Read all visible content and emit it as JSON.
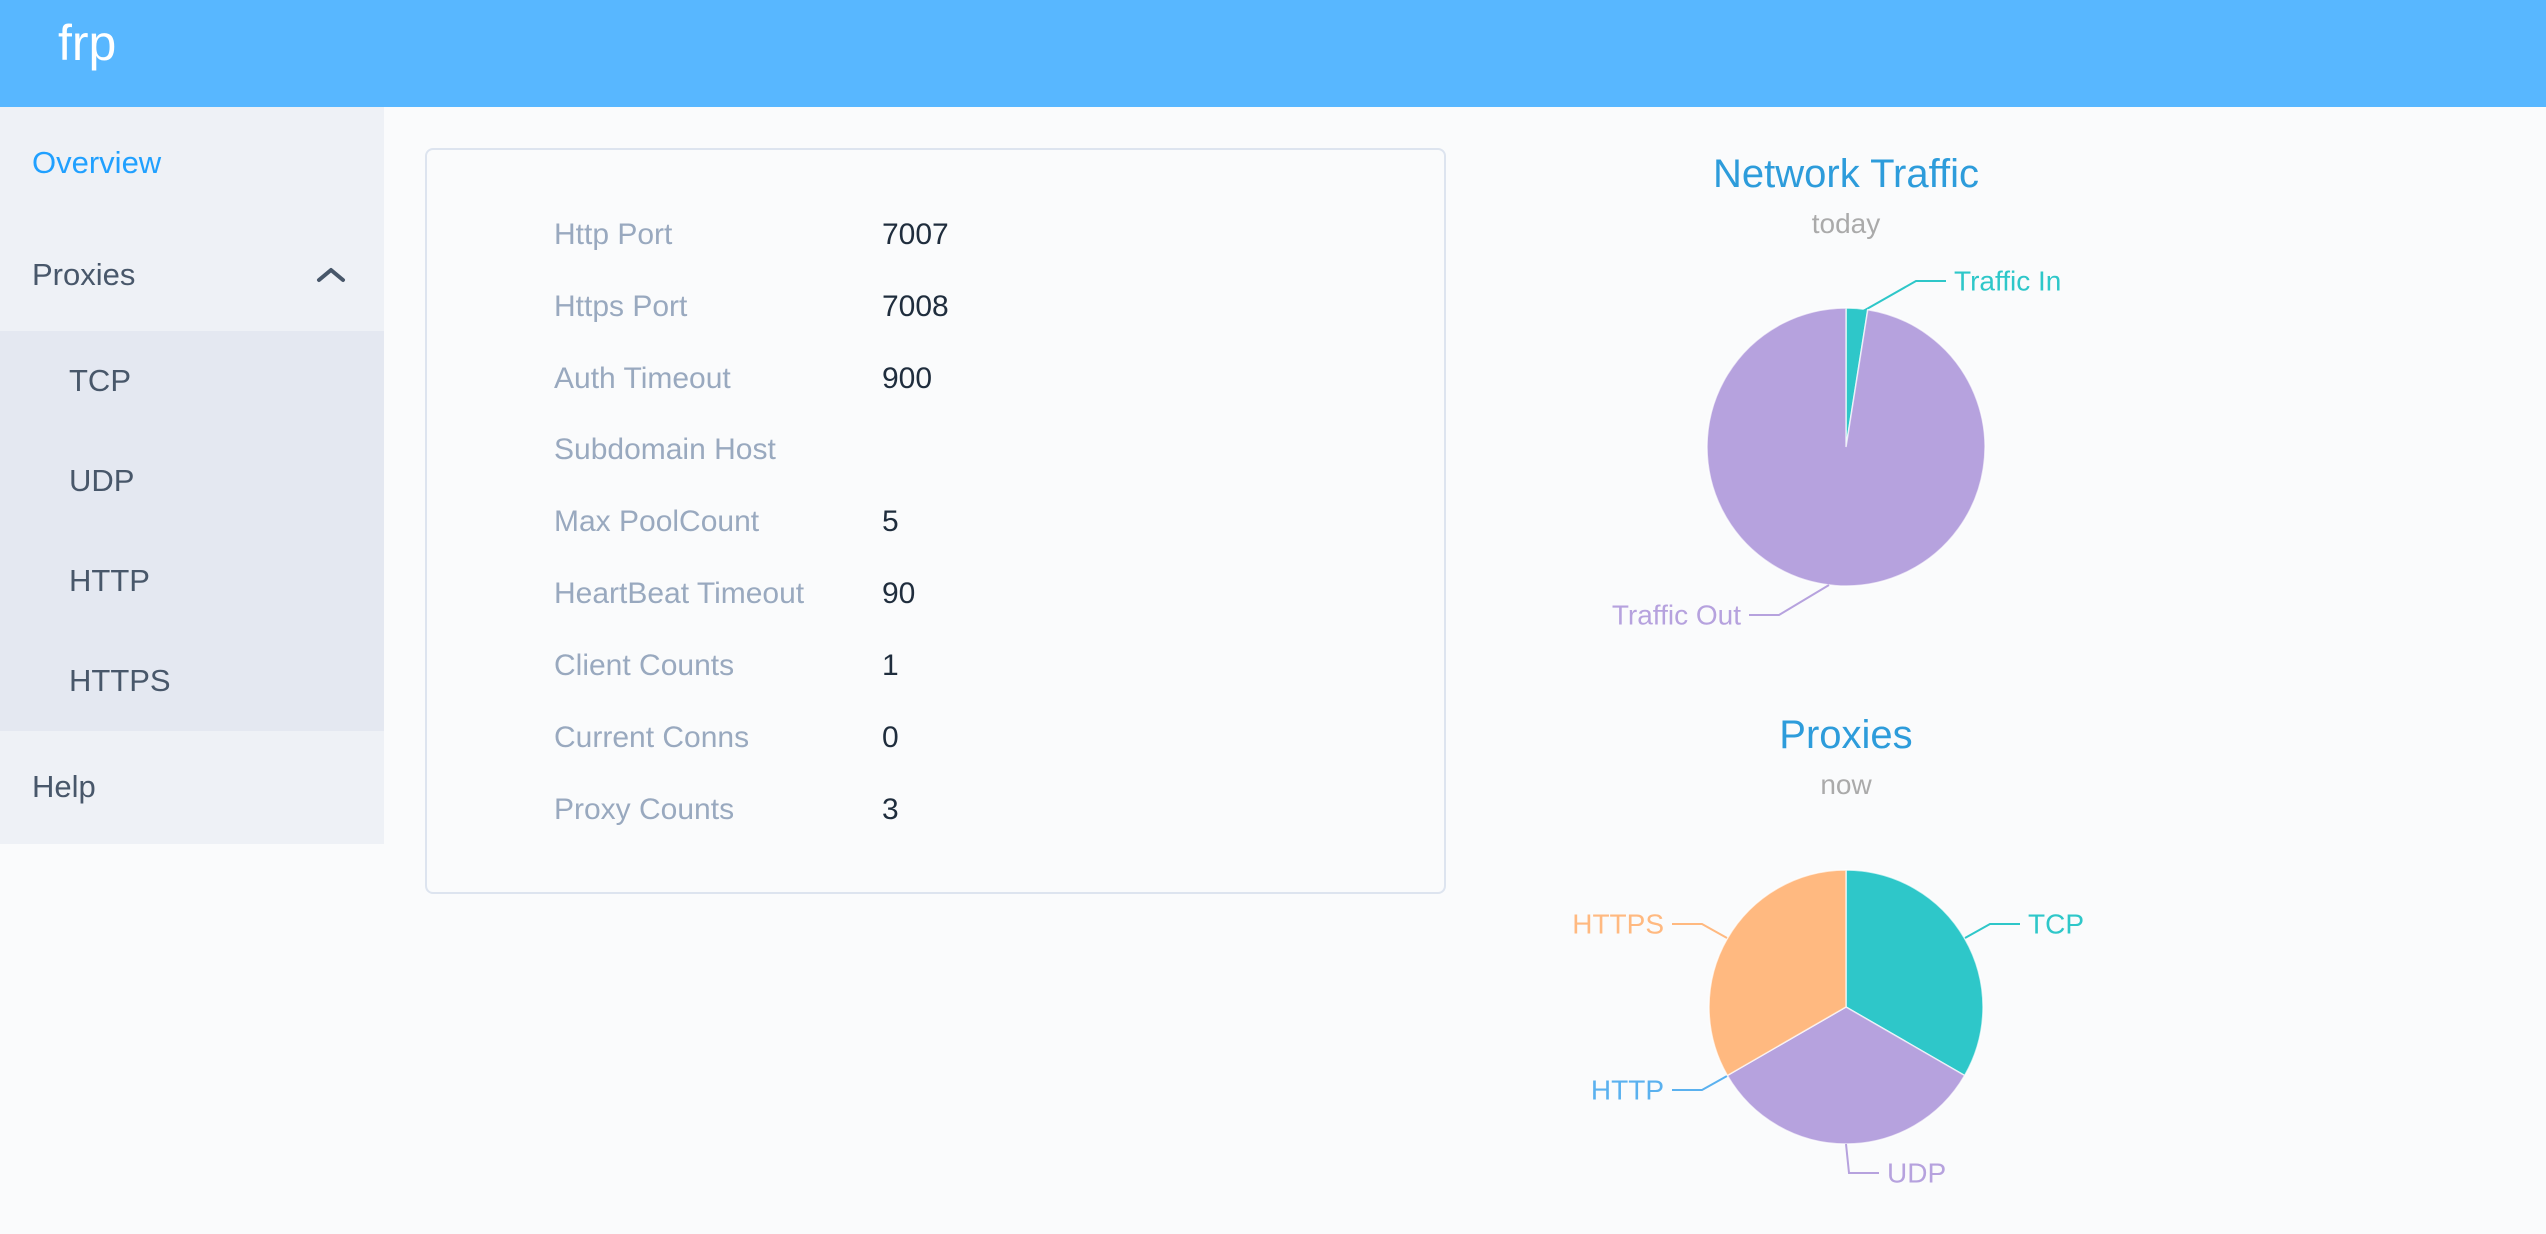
{
  "header": {
    "logo": "frp",
    "background_color": "#58b7ff"
  },
  "sidebar": {
    "background_color": "#eef1f6",
    "submenu_background_color": "#e4e8f1",
    "active_color": "#20a0ff",
    "text_color": "#48576a",
    "items": [
      {
        "label": "Overview",
        "active": true
      },
      {
        "label": "Proxies",
        "active": false,
        "expanded": true,
        "children": [
          {
            "label": "TCP"
          },
          {
            "label": "UDP"
          },
          {
            "label": "HTTP"
          },
          {
            "label": "HTTPS"
          }
        ]
      },
      {
        "label": "Help",
        "active": false
      }
    ]
  },
  "overview": {
    "label_color": "#99a9bf",
    "value_color": "#1f2d3d",
    "rows": [
      {
        "label": "Http Port",
        "value": "7007"
      },
      {
        "label": "Https Port",
        "value": "7008"
      },
      {
        "label": "Auth Timeout",
        "value": "900"
      },
      {
        "label": "Subdomain Host",
        "value": ""
      },
      {
        "label": "Max PoolCount",
        "value": "5"
      },
      {
        "label": "HeartBeat Timeout",
        "value": "90"
      },
      {
        "label": "Client Counts",
        "value": "1"
      },
      {
        "label": "Current Conns",
        "value": "0"
      },
      {
        "label": "Proxy Counts",
        "value": "3"
      }
    ]
  },
  "chart_data": [
    {
      "type": "pie",
      "title": "Network Traffic",
      "subtitle": "today",
      "legend_position": "none",
      "title_color": "#2d9cdb",
      "subtitle_color": "#aaaaaa",
      "series": [
        {
          "name": "Traffic In",
          "value": 2.5,
          "unit": "percent",
          "color": "#2ec7c9"
        },
        {
          "name": "Traffic Out",
          "value": 97.5,
          "unit": "percent",
          "color": "#b6a2de"
        }
      ]
    },
    {
      "type": "pie",
      "title": "Proxies",
      "subtitle": "now",
      "legend_position": "none",
      "title_color": "#2d9cdb",
      "subtitle_color": "#aaaaaa",
      "series": [
        {
          "name": "TCP",
          "value": 1,
          "unit": "count",
          "color": "#2ec7c9"
        },
        {
          "name": "UDP",
          "value": 1,
          "unit": "count",
          "color": "#b6a2de"
        },
        {
          "name": "HTTP",
          "value": 0,
          "unit": "count",
          "color": "#5ab1ef"
        },
        {
          "name": "HTTPS",
          "value": 1,
          "unit": "count",
          "color": "#ffb980"
        }
      ]
    }
  ]
}
